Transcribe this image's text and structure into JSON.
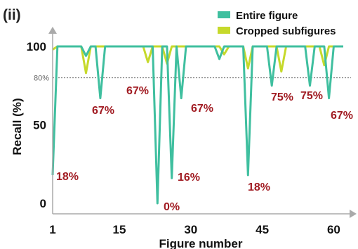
{
  "chart_data": {
    "type": "line",
    "panel_label": "(ii)",
    "xlabel": "Figure number",
    "ylabel": "Recall (%)",
    "xlim": [
      1,
      62
    ],
    "ylim": [
      0,
      100
    ],
    "x_ticks": [
      "1",
      "15",
      "30",
      "45",
      "60"
    ],
    "x_tick_values": [
      1,
      15,
      30,
      45,
      60
    ],
    "y_ticks": [
      "0",
      "50",
      "100"
    ],
    "y_tick_values": [
      0,
      50,
      100
    ],
    "reference_line": {
      "value": 80,
      "label": "80%"
    },
    "colors": {
      "entire": "#3fbf9f",
      "cropped": "#c6d92b",
      "annotation": "#a11b22",
      "reference": "#666666"
    },
    "series": [
      {
        "name": "Entire figure",
        "x": [
          1,
          2,
          3,
          7,
          8,
          9,
          10,
          11,
          12,
          20,
          21,
          22,
          23,
          24,
          25,
          26,
          27,
          28,
          29,
          35,
          36,
          37,
          41,
          42,
          43,
          46,
          47,
          48,
          54,
          55,
          56,
          58,
          59,
          60,
          62
        ],
        "y": [
          18,
          100,
          100,
          100,
          94,
          100,
          100,
          67,
          100,
          100,
          100,
          100,
          0,
          100,
          100,
          16,
          100,
          67,
          100,
          100,
          92,
          100,
          100,
          18,
          100,
          100,
          75,
          100,
          100,
          75,
          100,
          100,
          67,
          100,
          100
        ]
      },
      {
        "name": "Cropped subfigures",
        "x": [
          1,
          2,
          7,
          8,
          9,
          20,
          21,
          22,
          24,
          25,
          26,
          36,
          37,
          38,
          41,
          42,
          43,
          48,
          49,
          50,
          57,
          58,
          59,
          62
        ],
        "y": [
          98,
          100,
          100,
          83,
          100,
          100,
          90,
          100,
          100,
          89,
          100,
          100,
          95,
          100,
          100,
          86,
          100,
          100,
          84,
          100,
          100,
          88,
          100,
          100
        ]
      }
    ],
    "annotations": [
      "18%",
      "67%",
      "67%",
      "0%",
      "16%",
      "67%",
      "18%",
      "75%",
      "75%",
      "67%"
    ]
  }
}
